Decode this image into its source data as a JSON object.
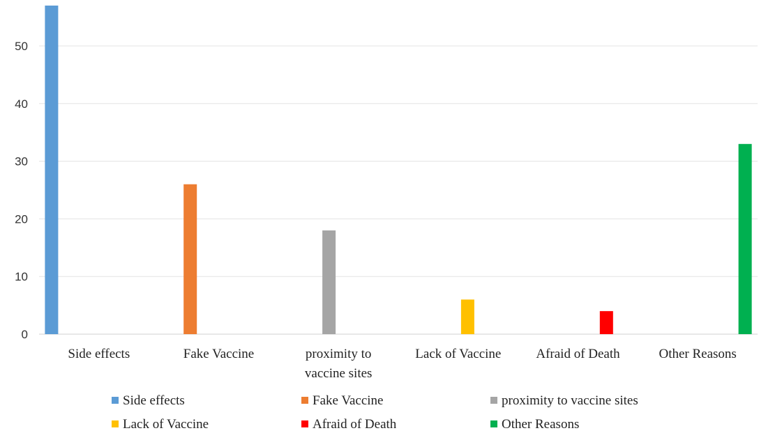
{
  "chart_data": {
    "type": "bar",
    "title": "",
    "xlabel": "",
    "ylabel": "",
    "ylim": [
      0,
      57
    ],
    "yticks": [
      0,
      10,
      20,
      30,
      40,
      50
    ],
    "grid": true,
    "legend_position": "bottom",
    "categories": [
      [
        "Side effects"
      ],
      [
        "Fake Vaccine"
      ],
      [
        "proximity to",
        "vaccine sites"
      ],
      [
        "Lack of Vaccine"
      ],
      [
        "Afraid of Death"
      ],
      [
        "Other Reasons"
      ]
    ],
    "series": [
      {
        "name": "Side effects",
        "color": "#5B9BD5",
        "values": [
          57,
          null,
          null,
          null,
          null,
          null
        ]
      },
      {
        "name": "Fake Vaccine",
        "color": "#ED7D31",
        "values": [
          null,
          26,
          null,
          null,
          null,
          null
        ]
      },
      {
        "name": "proximity to vaccine sites",
        "color": "#A5A5A5",
        "values": [
          null,
          null,
          18,
          null,
          null,
          null
        ]
      },
      {
        "name": "Lack of Vaccine",
        "color": "#FFC000",
        "values": [
          null,
          null,
          null,
          6,
          null,
          null
        ]
      },
      {
        "name": "Afraid of Death",
        "color": "#FF0000",
        "values": [
          null,
          null,
          null,
          null,
          4,
          null
        ]
      },
      {
        "name": "Other Reasons",
        "color": "#00B050",
        "values": [
          null,
          null,
          null,
          null,
          null,
          33
        ]
      }
    ]
  }
}
